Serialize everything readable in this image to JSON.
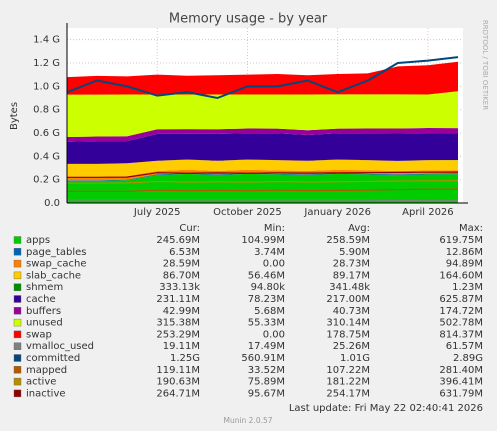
{
  "chart_data": {
    "type": "area",
    "title": "Memory usage - by year",
    "y_label": "Bytes",
    "side_label": "RRDTOOL / TOBI OETIKER",
    "footer": "Last update: Fri May 22 02:40:41 2026",
    "version": "Munin 2.0.57",
    "legend_headers": [
      "Cur:",
      "Min:",
      "Avg:",
      "Max:"
    ],
    "x": [
      "2025-04",
      "2025-05",
      "2025-06",
      "2025-07",
      "2025-08",
      "2025-09",
      "2025-10",
      "2025-11",
      "2025-12",
      "2026-01",
      "2026-02",
      "2026-03",
      "2026-04",
      "2026-05"
    ],
    "xlim": [
      "2025-04",
      "2026-05"
    ],
    "xticks": [
      {
        "value": "2025-07",
        "label": "July 2025"
      },
      {
        "value": "2025-10",
        "label": "October 2025"
      },
      {
        "value": "2026-01",
        "label": "January 2026"
      },
      {
        "value": "2026-04",
        "label": "April 2026"
      }
    ],
    "ylim": [
      0,
      1500000000
    ],
    "yticks": [
      {
        "value": 0,
        "label": "0.0"
      },
      {
        "value": 200000000,
        "label": "0.2 G"
      },
      {
        "value": 400000000,
        "label": "0.4 G"
      },
      {
        "value": 600000000,
        "label": "0.6 G"
      },
      {
        "value": 800000000,
        "label": "0.8 G"
      },
      {
        "value": 1000000000,
        "label": "1.0 G"
      },
      {
        "value": 1200000000,
        "label": "1.2 G"
      },
      {
        "value": 1400000000,
        "label": "1.4 G"
      }
    ],
    "grid": true,
    "series": [
      {
        "name": "apps",
        "color": "#00cc00",
        "stacked": true,
        "cur": "245.69M",
        "min": "104.99M",
        "avg": "258.59M",
        "max": "619.75M",
        "values": [
          190000000,
          190000000,
          195000000,
          240000000,
          250000000,
          240000000,
          250000000,
          245000000,
          240000000,
          250000000,
          245000000,
          240000000,
          245000000,
          246000000
        ]
      },
      {
        "name": "page_tables",
        "color": "#0066b3",
        "stacked": true,
        "cur": "6.53M",
        "min": "3.74M",
        "avg": "5.90M",
        "max": "12.86M",
        "values": [
          5000000,
          5000000,
          5500000,
          6000000,
          6000000,
          6000000,
          6000000,
          6000000,
          6000000,
          6200000,
          6300000,
          6400000,
          6500000,
          6530000
        ]
      },
      {
        "name": "swap_cache",
        "color": "#ff8000",
        "stacked": true,
        "cur": "28.59M",
        "min": "0.00",
        "avg": "28.73M",
        "max": "94.89M",
        "values": [
          30000000,
          30000000,
          30000000,
          28000000,
          29000000,
          28000000,
          29000000,
          28000000,
          29000000,
          28000000,
          29000000,
          28000000,
          28600000,
          28590000
        ]
      },
      {
        "name": "slab_cache",
        "color": "#ffcc00",
        "stacked": true,
        "cur": "86.70M",
        "min": "56.46M",
        "avg": "89.17M",
        "max": "164.60M",
        "values": [
          110000000,
          110000000,
          110000000,
          88000000,
          87000000,
          88000000,
          87000000,
          88000000,
          87000000,
          88000000,
          87000000,
          86000000,
          87000000,
          86700000
        ]
      },
      {
        "name": "shmem",
        "color": "#008f00",
        "stacked": true,
        "cur": "333.13k",
        "min": "94.80k",
        "avg": "341.48k",
        "max": "1.23M",
        "values": [
          330000,
          330000,
          330000,
          340000,
          340000,
          340000,
          340000,
          340000,
          340000,
          340000,
          340000,
          333000,
          333000,
          333130
        ]
      },
      {
        "name": "cache",
        "color": "#330099",
        "stacked": true,
        "cur": "231.11M",
        "min": "78.23M",
        "avg": "217.00M",
        "max": "625.87M",
        "values": [
          190000000,
          195000000,
          190000000,
          230000000,
          220000000,
          230000000,
          225000000,
          230000000,
          220000000,
          225000000,
          230000000,
          235000000,
          232000000,
          231110000
        ]
      },
      {
        "name": "buffers",
        "color": "#990099",
        "stacked": true,
        "cur": "42.99M",
        "min": "5.68M",
        "avg": "40.73M",
        "max": "174.72M",
        "values": [
          40000000,
          40000000,
          41000000,
          40000000,
          41000000,
          40000000,
          41000000,
          40000000,
          41000000,
          40000000,
          41000000,
          43000000,
          43000000,
          42990000
        ]
      },
      {
        "name": "unused",
        "color": "#ccff00",
        "stacked": true,
        "cur": "315.38M",
        "min": "55.33M",
        "avg": "310.14M",
        "max": "502.78M",
        "values": [
          364000000,
          359000000,
          358000000,
          298000000,
          297000000,
          298000000,
          292000000,
          293000000,
          307000000,
          293000000,
          292000000,
          292000000,
          288000000,
          315380000
        ]
      },
      {
        "name": "swap",
        "color": "#ff0000",
        "stacked": true,
        "cur": "253.29M",
        "min": "0.00",
        "avg": "178.75M",
        "max": "814.37M",
        "values": [
          150000000,
          160000000,
          155000000,
          170000000,
          160000000,
          165000000,
          170000000,
          175000000,
          165000000,
          175000000,
          180000000,
          240000000,
          250000000,
          253290000
        ]
      },
      {
        "name": "vmalloc_used",
        "color": "#808080",
        "stacked": false,
        "cur": "19.11M",
        "min": "17.49M",
        "avg": "25.26M",
        "max": "61.57M",
        "values": [
          25000000,
          25000000,
          26000000,
          25000000,
          26000000,
          25000000,
          26000000,
          25000000,
          26000000,
          25000000,
          24000000,
          22000000,
          20000000,
          19110000
        ]
      },
      {
        "name": "committed",
        "color": "#00487d",
        "stacked": false,
        "cur": "1.25G",
        "min": "560.91M",
        "avg": "1.01G",
        "max": "2.89G",
        "values": [
          950000000,
          1050000000,
          1000000000,
          920000000,
          950000000,
          900000000,
          1000000000,
          1000000000,
          1050000000,
          950000000,
          1050000000,
          1200000000,
          1220000000,
          1250000000
        ]
      },
      {
        "name": "mapped",
        "color": "#b35a00",
        "stacked": false,
        "cur": "119.11M",
        "min": "33.52M",
        "avg": "107.22M",
        "max": "281.40M",
        "values": [
          100000000,
          100000000,
          100000000,
          110000000,
          105000000,
          108000000,
          105000000,
          110000000,
          106000000,
          108000000,
          110000000,
          115000000,
          118000000,
          119110000
        ]
      },
      {
        "name": "active",
        "color": "#b38f00",
        "stacked": false,
        "cur": "190.63M",
        "min": "75.89M",
        "avg": "181.22M",
        "max": "396.41M",
        "values": [
          170000000,
          170000000,
          172000000,
          185000000,
          180000000,
          182000000,
          180000000,
          183000000,
          181000000,
          182000000,
          185000000,
          188000000,
          190000000,
          190630000
        ]
      },
      {
        "name": "inactive",
        "color": "#8f0000",
        "stacked": false,
        "cur": "264.71M",
        "min": "95.67M",
        "avg": "254.17M",
        "max": "631.79M",
        "values": [
          220000000,
          220000000,
          222000000,
          260000000,
          255000000,
          258000000,
          255000000,
          258000000,
          256000000,
          258000000,
          260000000,
          262000000,
          264000000,
          264710000
        ]
      }
    ]
  }
}
